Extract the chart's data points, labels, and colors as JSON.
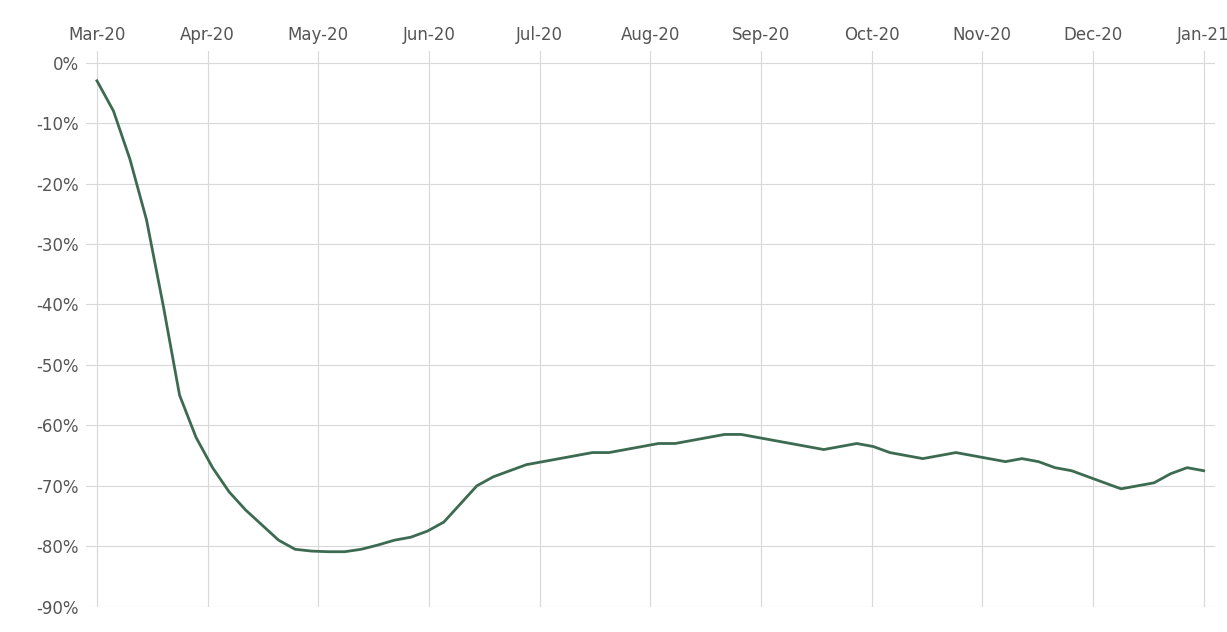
{
  "x_labels": [
    "Mar-20",
    "Apr-20",
    "May-20",
    "Jun-20",
    "Jul-20",
    "Aug-20",
    "Sep-20",
    "Oct-20",
    "Nov-20",
    "Dec-20",
    "Jan-21"
  ],
  "y_values": [
    -3.0,
    -8.0,
    -16.0,
    -26.0,
    -40.0,
    -55.0,
    -62.0,
    -67.0,
    -71.0,
    -74.0,
    -76.5,
    -79.0,
    -80.5,
    -80.8,
    -80.9,
    -80.9,
    -80.5,
    -79.8,
    -79.0,
    -78.5,
    -77.5,
    -76.0,
    -73.0,
    -70.0,
    -68.5,
    -67.5,
    -66.5,
    -66.0,
    -65.5,
    -65.0,
    -64.5,
    -64.5,
    -64.0,
    -63.5,
    -63.0,
    -63.0,
    -62.5,
    -62.0,
    -61.5,
    -61.5,
    -62.0,
    -62.5,
    -63.0,
    -63.5,
    -64.0,
    -63.5,
    -63.0,
    -63.5,
    -64.5,
    -65.0,
    -65.5,
    -65.0,
    -64.5,
    -65.0,
    -65.5,
    -66.0,
    -65.5,
    -66.0,
    -67.0,
    -67.5,
    -68.5,
    -69.5,
    -70.5,
    -70.0,
    -69.5,
    -68.0,
    -67.0,
    -67.5
  ],
  "n_ticks": 11,
  "line_color": "#3d6b52",
  "background_color": "#ffffff",
  "grid_color": "#d8d8d8",
  "ylim": [
    -90,
    2
  ],
  "yticks": [
    0,
    -10,
    -20,
    -30,
    -40,
    -50,
    -60,
    -70,
    -80,
    -90
  ],
  "ytick_labels": [
    "0%",
    "-10%",
    "-20%",
    "-30%",
    "-40%",
    "-50%",
    "-60%",
    "-70%",
    "-80%",
    "-90%"
  ],
  "line_width": 2.0,
  "tick_fontsize": 12,
  "tick_color": "#555555"
}
